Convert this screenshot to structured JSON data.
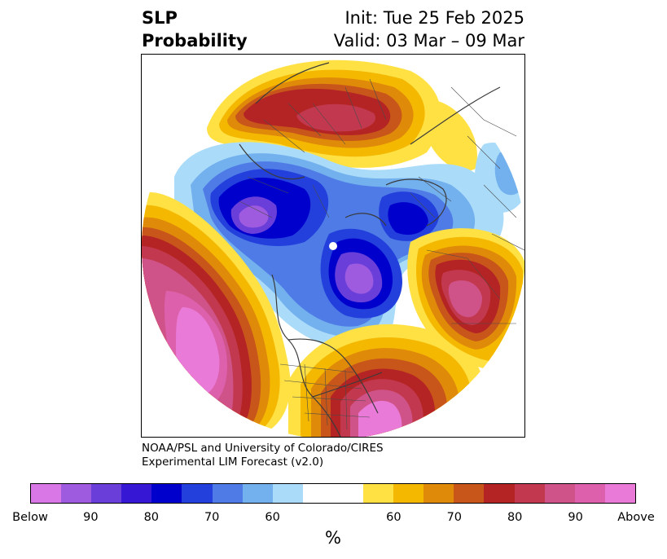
{
  "header": {
    "left_line1": "SLP",
    "left_line2": "Probability",
    "right_line1": "Init: Tue 25 Feb 2025",
    "right_line2": "Valid: 03 Mar – 09 Mar"
  },
  "credit": {
    "line1": "NOAA/PSL and University of Colorado/CIRES",
    "line2": "Experimental LIM Forecast (v2.0)"
  },
  "colorbar": {
    "unit": "%",
    "colors_below": [
      "#d977e6",
      "#9f5be0",
      "#6a3fd9",
      "#3618d4",
      "#0000cd",
      "#2340dc",
      "#4f7be6",
      "#73b0ee",
      "#aadcfa"
    ],
    "color_neutral": "#ffffff",
    "colors_above": [
      "#ffe144",
      "#f5b800",
      "#e08a0a",
      "#c8561a",
      "#b52424",
      "#c2394f",
      "#cf5389",
      "#dc60ab",
      "#e97ad8"
    ],
    "tick_labels": [
      "Below",
      "90",
      "80",
      "70",
      "60",
      "60",
      "70",
      "80",
      "90",
      "Above"
    ]
  },
  "map": {
    "projection": "north-polar-stereographic",
    "layers": [
      "slp-probability-shading",
      "coastlines",
      "country-borders",
      "state-borders"
    ]
  }
}
